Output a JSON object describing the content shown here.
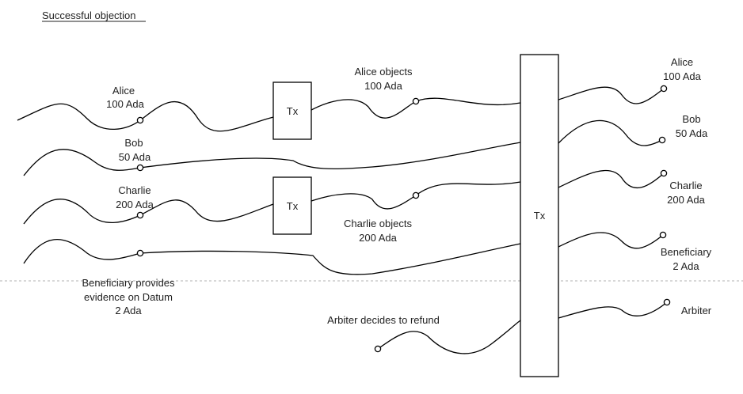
{
  "title": "Successful objection",
  "tx_label": "Tx",
  "inputs": {
    "alice": [
      "Alice",
      "100 Ada"
    ],
    "bob": [
      "Bob",
      "50 Ada"
    ],
    "charlie": [
      "Charlie",
      "200 Ada"
    ],
    "beneficiary": [
      "Beneficiary provides",
      "evidence on Datum",
      "2 Ada"
    ]
  },
  "objections": {
    "alice": [
      "Alice objects",
      "100 Ada"
    ],
    "charlie": [
      "Charlie objects",
      "200 Ada"
    ]
  },
  "arbiter_input": "Arbiter decides to refund",
  "outputs": {
    "alice": [
      "Alice",
      "100 Ada"
    ],
    "bob": [
      "Bob",
      "50 Ada"
    ],
    "charlie": [
      "Charlie",
      "200 Ada"
    ],
    "beneficiary": [
      "Beneficiary",
      "2 Ada"
    ],
    "arbiter": "Arbiter"
  }
}
